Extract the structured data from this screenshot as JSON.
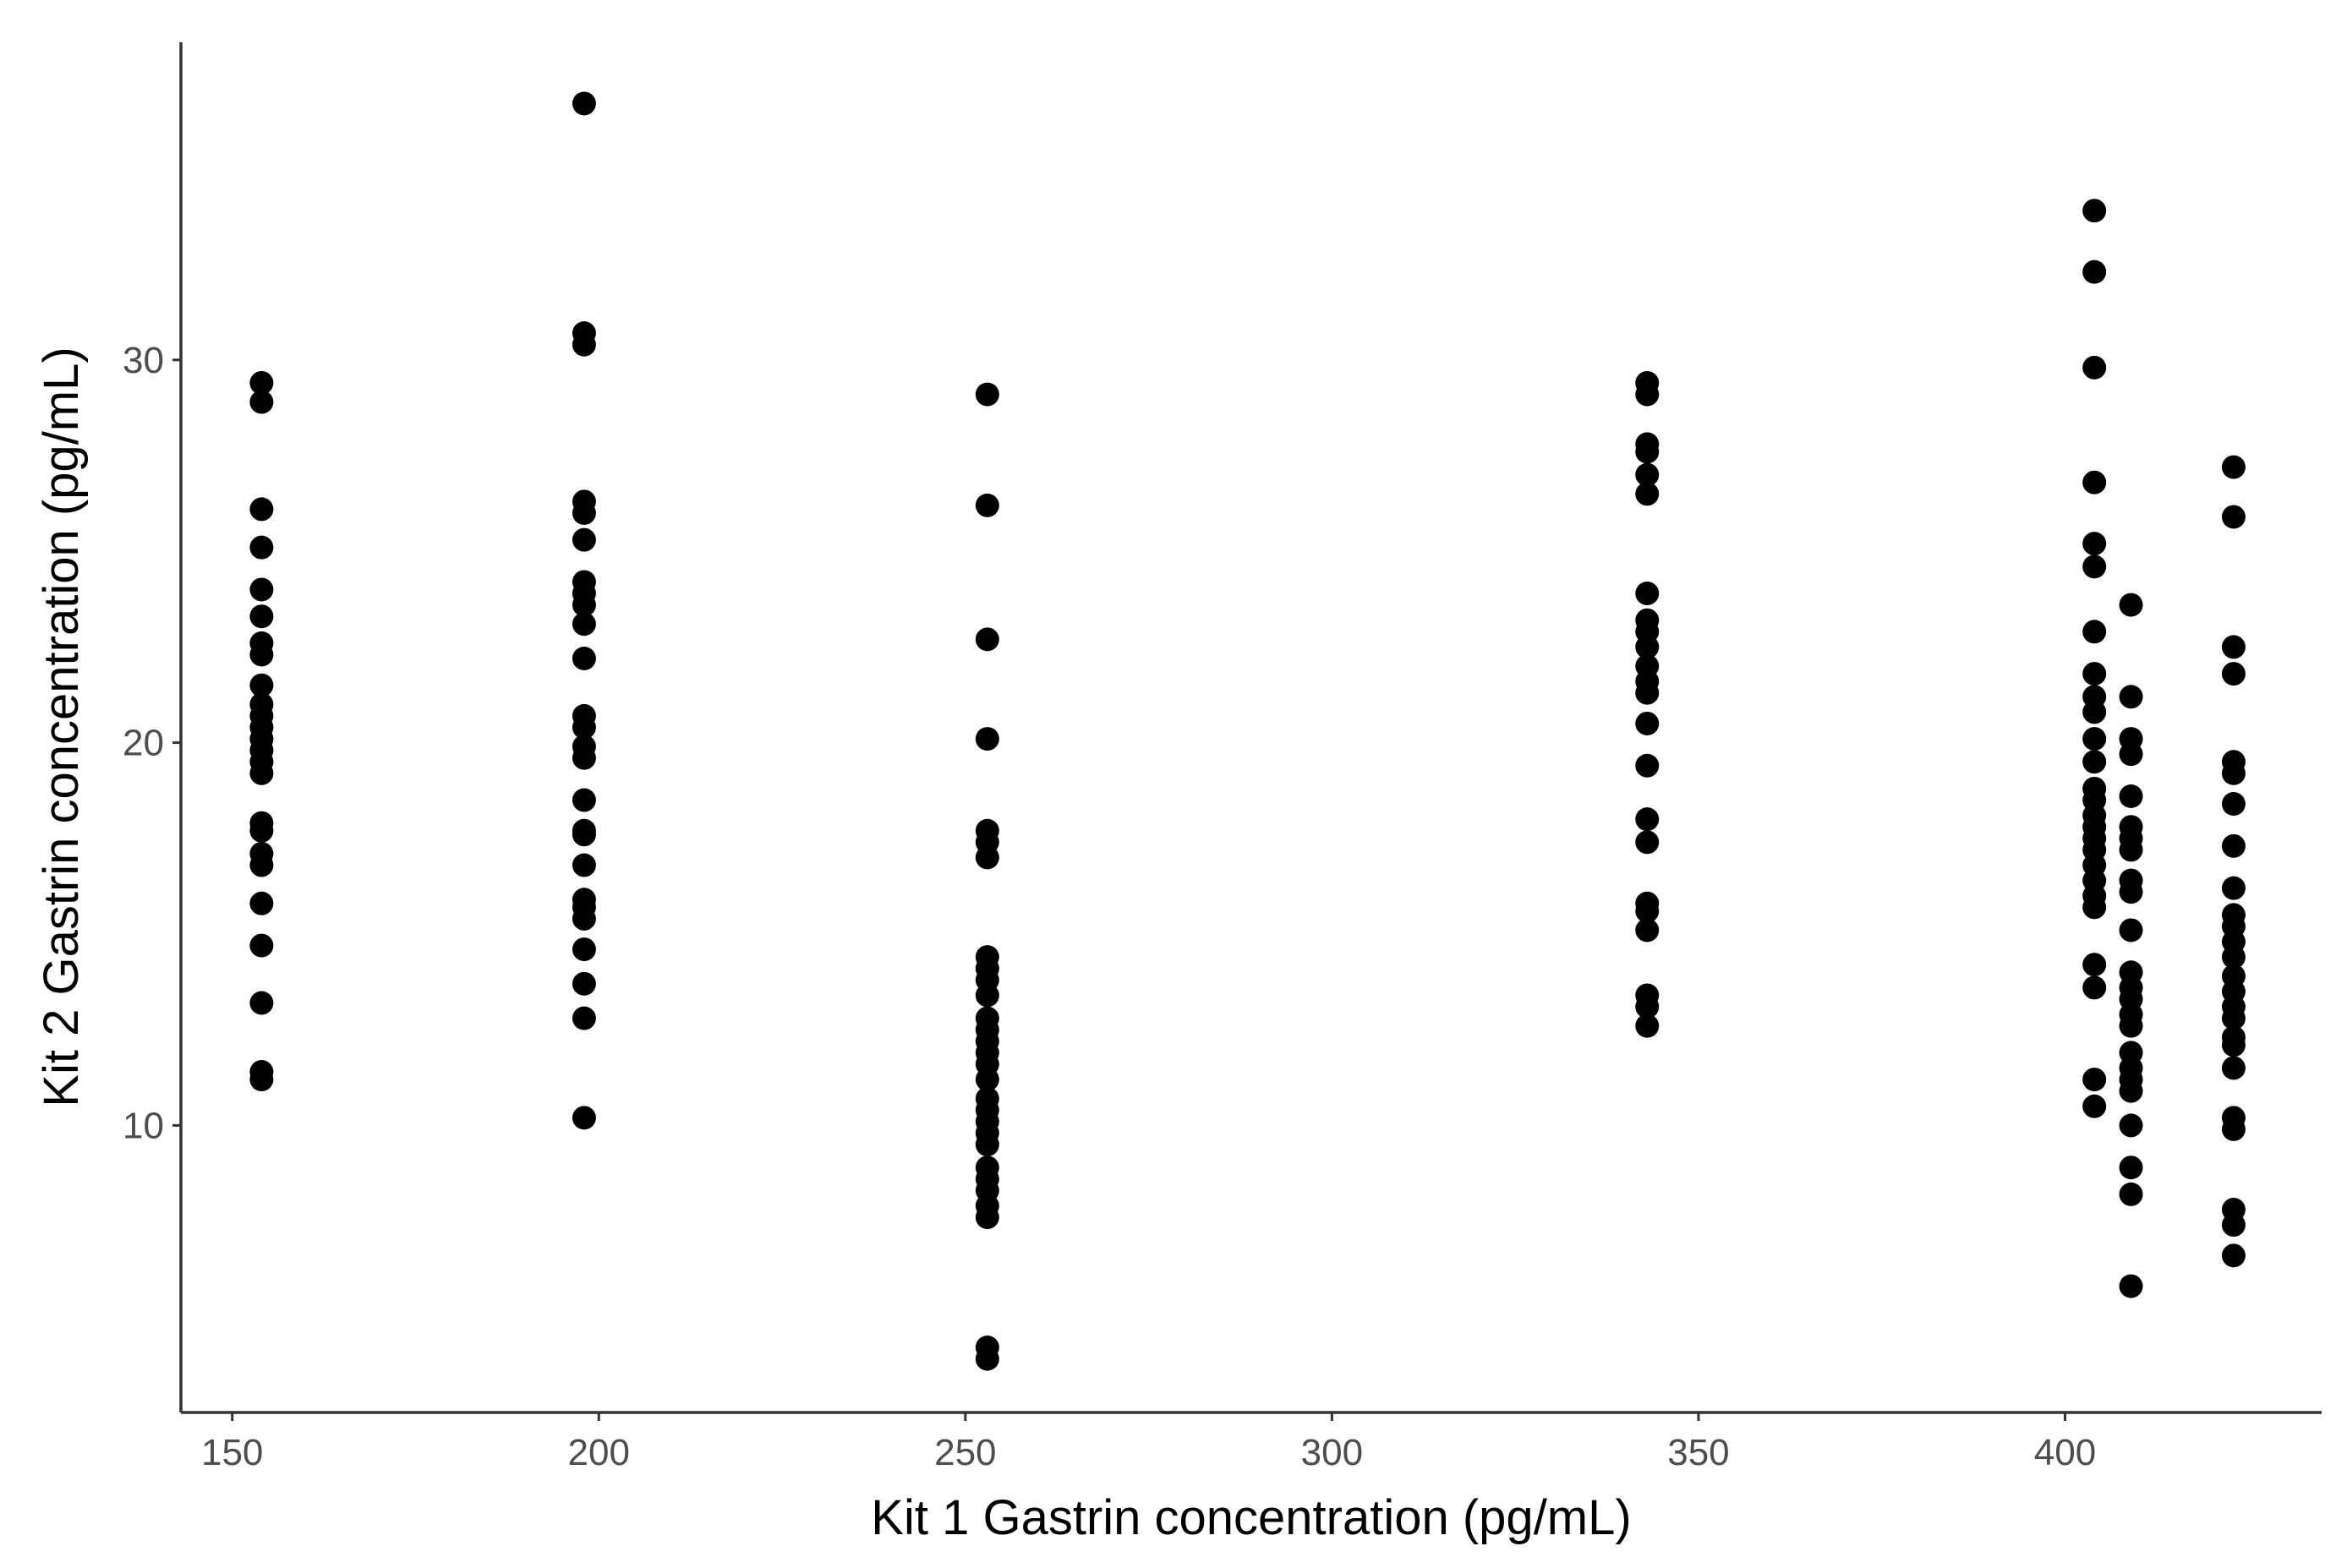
{
  "chart_data": {
    "type": "scatter",
    "xlabel": "Kit 1 Gastrin concentration (pg/mL)",
    "ylabel": "Kit 2 Gastrin concentration (pg/mL)",
    "xlim": [
      143,
      435
    ],
    "ylim": [
      2.5,
      38.3
    ],
    "x_ticks": [
      150,
      200,
      250,
      300,
      350,
      400
    ],
    "y_ticks": [
      10,
      20,
      30
    ],
    "grid": false,
    "legend": "none",
    "point_color": "#000000",
    "series": [
      {
        "points": [
          [
            154,
            29.4
          ],
          [
            154,
            28.9
          ],
          [
            154,
            26.1
          ],
          [
            154,
            25.1
          ],
          [
            154,
            24.0
          ],
          [
            154,
            23.3
          ],
          [
            154,
            22.6
          ],
          [
            154,
            22.3
          ],
          [
            154,
            21.5
          ],
          [
            154,
            21.0
          ],
          [
            154,
            20.7
          ],
          [
            154,
            20.4
          ],
          [
            154,
            20.1
          ],
          [
            154,
            19.8
          ],
          [
            154,
            19.5
          ],
          [
            154,
            19.2
          ],
          [
            154,
            17.9
          ],
          [
            154,
            17.7
          ],
          [
            154,
            17.1
          ],
          [
            154,
            16.8
          ],
          [
            154,
            15.8
          ],
          [
            154,
            14.7
          ],
          [
            154,
            13.2
          ],
          [
            154,
            11.4
          ],
          [
            154,
            11.2
          ],
          [
            198,
            36.7
          ],
          [
            198,
            30.7
          ],
          [
            198,
            30.4
          ],
          [
            198,
            26.3
          ],
          [
            198,
            26.0
          ],
          [
            198,
            25.3
          ],
          [
            198,
            24.2
          ],
          [
            198,
            23.9
          ],
          [
            198,
            23.6
          ],
          [
            198,
            23.1
          ],
          [
            198,
            22.2
          ],
          [
            198,
            20.7
          ],
          [
            198,
            20.4
          ],
          [
            198,
            19.9
          ],
          [
            198,
            19.6
          ],
          [
            198,
            18.5
          ],
          [
            198,
            17.7
          ],
          [
            198,
            17.6
          ],
          [
            198,
            16.8
          ],
          [
            198,
            15.9
          ],
          [
            198,
            15.7
          ],
          [
            198,
            15.4
          ],
          [
            198,
            14.6
          ],
          [
            198,
            13.7
          ],
          [
            198,
            12.8
          ],
          [
            198,
            10.2
          ],
          [
            253,
            29.1
          ],
          [
            253,
            26.2
          ],
          [
            253,
            22.7
          ],
          [
            253,
            20.1
          ],
          [
            253,
            17.7
          ],
          [
            253,
            17.4
          ],
          [
            253,
            17.0
          ],
          [
            253,
            14.4
          ],
          [
            253,
            14.1
          ],
          [
            253,
            13.8
          ],
          [
            253,
            13.4
          ],
          [
            253,
            12.8
          ],
          [
            253,
            12.5
          ],
          [
            253,
            12.2
          ],
          [
            253,
            11.9
          ],
          [
            253,
            11.6
          ],
          [
            253,
            11.2
          ],
          [
            253,
            10.7
          ],
          [
            253,
            10.4
          ],
          [
            253,
            10.1
          ],
          [
            253,
            9.8
          ],
          [
            253,
            9.5
          ],
          [
            253,
            8.9
          ],
          [
            253,
            8.6
          ],
          [
            253,
            8.3
          ],
          [
            253,
            7.9
          ],
          [
            253,
            7.6
          ],
          [
            253,
            4.2
          ],
          [
            253,
            3.9
          ],
          [
            343,
            29.4
          ],
          [
            343,
            29.1
          ],
          [
            343,
            27.8
          ],
          [
            343,
            27.6
          ],
          [
            343,
            27.0
          ],
          [
            343,
            26.5
          ],
          [
            343,
            23.9
          ],
          [
            343,
            23.2
          ],
          [
            343,
            22.9
          ],
          [
            343,
            22.5
          ],
          [
            343,
            22.0
          ],
          [
            343,
            21.6
          ],
          [
            343,
            21.3
          ],
          [
            343,
            20.5
          ],
          [
            343,
            19.4
          ],
          [
            343,
            18.0
          ],
          [
            343,
            17.4
          ],
          [
            343,
            15.8
          ],
          [
            343,
            15.6
          ],
          [
            343,
            15.1
          ],
          [
            343,
            13.4
          ],
          [
            343,
            13.1
          ],
          [
            343,
            12.6
          ],
          [
            404,
            33.9
          ],
          [
            404,
            32.3
          ],
          [
            404,
            29.8
          ],
          [
            404,
            26.8
          ],
          [
            404,
            25.2
          ],
          [
            404,
            24.6
          ],
          [
            404,
            22.9
          ],
          [
            404,
            21.8
          ],
          [
            404,
            21.2
          ],
          [
            404,
            20.8
          ],
          [
            404,
            20.1
          ],
          [
            404,
            19.5
          ],
          [
            404,
            18.8
          ],
          [
            404,
            18.5
          ],
          [
            404,
            18.1
          ],
          [
            404,
            17.8
          ],
          [
            404,
            17.5
          ],
          [
            404,
            17.2
          ],
          [
            404,
            16.8
          ],
          [
            404,
            16.4
          ],
          [
            404,
            16.0
          ],
          [
            404,
            15.7
          ],
          [
            404,
            14.2
          ],
          [
            404,
            13.6
          ],
          [
            404,
            11.2
          ],
          [
            404,
            10.5
          ],
          [
            409,
            23.6
          ],
          [
            409,
            21.2
          ],
          [
            409,
            20.1
          ],
          [
            409,
            19.7
          ],
          [
            409,
            18.6
          ],
          [
            409,
            17.8
          ],
          [
            409,
            17.5
          ],
          [
            409,
            17.2
          ],
          [
            409,
            16.4
          ],
          [
            409,
            16.1
          ],
          [
            409,
            15.1
          ],
          [
            409,
            14.0
          ],
          [
            409,
            13.6
          ],
          [
            409,
            13.3
          ],
          [
            409,
            12.9
          ],
          [
            409,
            12.6
          ],
          [
            409,
            11.9
          ],
          [
            409,
            11.5
          ],
          [
            409,
            11.2
          ],
          [
            409,
            10.9
          ],
          [
            409,
            10.0
          ],
          [
            409,
            8.9
          ],
          [
            409,
            8.2
          ],
          [
            409,
            5.8
          ],
          [
            423,
            27.2
          ],
          [
            423,
            25.9
          ],
          [
            423,
            22.5
          ],
          [
            423,
            21.8
          ],
          [
            423,
            19.5
          ],
          [
            423,
            19.2
          ],
          [
            423,
            18.4
          ],
          [
            423,
            17.3
          ],
          [
            423,
            16.2
          ],
          [
            423,
            15.5
          ],
          [
            423,
            15.2
          ],
          [
            423,
            14.8
          ],
          [
            423,
            14.4
          ],
          [
            423,
            13.9
          ],
          [
            423,
            13.5
          ],
          [
            423,
            13.1
          ],
          [
            423,
            12.8
          ],
          [
            423,
            12.3
          ],
          [
            423,
            12.1
          ],
          [
            423,
            11.5
          ],
          [
            423,
            10.2
          ],
          [
            423,
            9.9
          ],
          [
            423,
            7.8
          ],
          [
            423,
            7.4
          ],
          [
            423,
            6.6
          ]
        ]
      }
    ]
  }
}
